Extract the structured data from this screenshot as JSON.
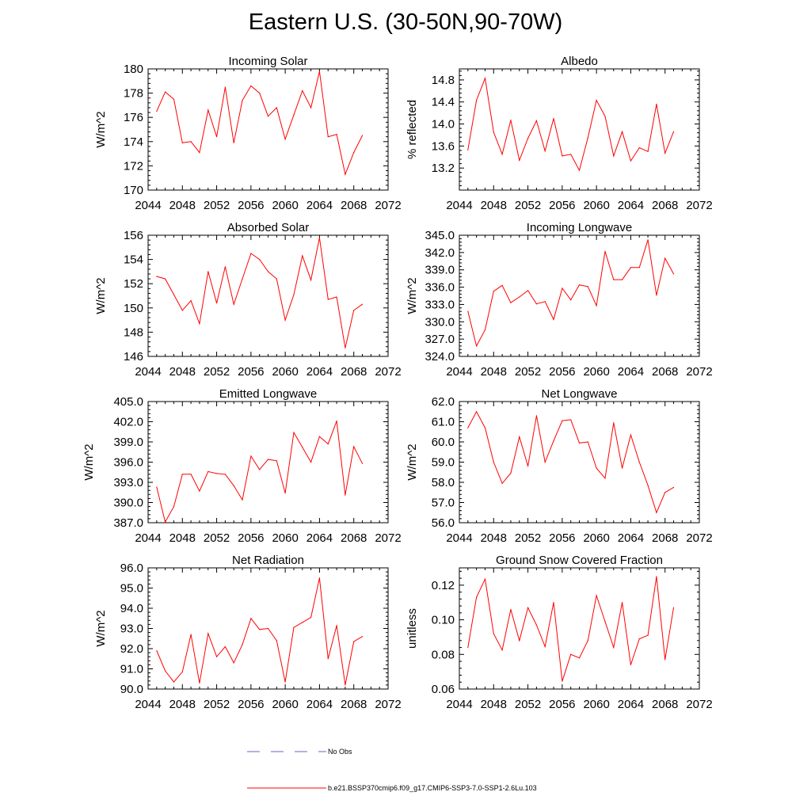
{
  "title": "Eastern U.S. (30-50N,90-70W)",
  "colors": {
    "model": "#ff0000",
    "obs": "#6666cc",
    "axis": "#000000"
  },
  "legend": {
    "obs_label": "No Obs",
    "model_label": "b.e21.BSSP370cmip6.f09_g17.CMIP6-SSP3-7.0-SSP1-2.6Lu.103"
  },
  "chart_data": [
    {
      "type": "line",
      "title": "Incoming Solar",
      "ylabel": "W/m^2",
      "xlim": [
        2044,
        2072
      ],
      "ylim": [
        170,
        180
      ],
      "xticks": [
        2044,
        2048,
        2052,
        2056,
        2060,
        2064,
        2068,
        2072
      ],
      "xtick_labels": [
        "2044",
        "2048",
        "2052",
        "2056",
        "2060",
        "2064",
        "2068",
        "2072"
      ],
      "yticks": [
        170,
        172,
        174,
        176,
        178,
        180
      ],
      "ytick_labels": [
        "170",
        "172",
        "174",
        "176",
        "178",
        "180"
      ],
      "x": [
        2045,
        2046,
        2047,
        2048,
        2049,
        2050,
        2051,
        2052,
        2053,
        2054,
        2055,
        2056,
        2057,
        2058,
        2059,
        2060,
        2061,
        2062,
        2063,
        2064,
        2065,
        2066,
        2067,
        2068,
        2069
      ],
      "series": [
        {
          "name": "b.e21.BSSP370cmip6.f09_g17.CMIP6-SSP3-7.0-SSP1-2.6Lu.103",
          "values": [
            176.5,
            178.1,
            177.5,
            173.9,
            174.0,
            173.1,
            176.6,
            174.4,
            178.5,
            173.9,
            177.4,
            178.6,
            178.0,
            176.1,
            176.8,
            174.2,
            176.2,
            178.2,
            176.8,
            179.8,
            174.4,
            174.6,
            171.3,
            173.1,
            174.5
          ]
        }
      ]
    },
    {
      "type": "line",
      "title": "Albedo",
      "ylabel": "% reflected",
      "xlim": [
        2044,
        2072
      ],
      "ylim": [
        12.8,
        15.0
      ],
      "xticks": [
        2044,
        2048,
        2052,
        2056,
        2060,
        2064,
        2068,
        2072
      ],
      "xtick_labels": [
        "2044",
        "2048",
        "2052",
        "2056",
        "2060",
        "2064",
        "2068",
        "2072"
      ],
      "yticks": [
        13.2,
        13.6,
        14.0,
        14.4,
        14.8
      ],
      "ytick_labels": [
        "13.2",
        "13.6",
        "14.0",
        "14.4",
        "14.8"
      ],
      "x": [
        2045,
        2046,
        2047,
        2048,
        2049,
        2050,
        2051,
        2052,
        2053,
        2054,
        2055,
        2056,
        2057,
        2058,
        2059,
        2060,
        2061,
        2062,
        2063,
        2064,
        2065,
        2066,
        2067,
        2068,
        2069
      ],
      "series": [
        {
          "name": "b.e21.BSSP370cmip6.f09_g17.CMIP6-SSP3-7.0-SSP1-2.6Lu.103",
          "values": [
            13.53,
            14.43,
            14.83,
            13.85,
            13.45,
            14.07,
            13.34,
            13.74,
            14.06,
            13.51,
            14.1,
            13.42,
            13.45,
            13.16,
            13.75,
            14.43,
            14.14,
            13.42,
            13.86,
            13.33,
            13.57,
            13.5,
            14.36,
            13.47,
            13.86
          ]
        }
      ]
    },
    {
      "type": "line",
      "title": "Absorbed Solar",
      "ylabel": "W/m^2",
      "xlim": [
        2044,
        2072
      ],
      "ylim": [
        146,
        156
      ],
      "xticks": [
        2044,
        2048,
        2052,
        2056,
        2060,
        2064,
        2068,
        2072
      ],
      "xtick_labels": [
        "2044",
        "2048",
        "2052",
        "2056",
        "2060",
        "2064",
        "2068",
        "2072"
      ],
      "yticks": [
        146,
        148,
        150,
        152,
        154,
        156
      ],
      "ytick_labels": [
        "146",
        "148",
        "150",
        "152",
        "154",
        "156"
      ],
      "x": [
        2045,
        2046,
        2047,
        2048,
        2049,
        2050,
        2051,
        2052,
        2053,
        2054,
        2055,
        2056,
        2057,
        2058,
        2059,
        2060,
        2061,
        2062,
        2063,
        2064,
        2065,
        2066,
        2067,
        2068,
        2069
      ],
      "series": [
        {
          "name": "b.e21.BSSP370cmip6.f09_g17.CMIP6-SSP3-7.0-SSP1-2.6Lu.103",
          "values": [
            152.6,
            152.4,
            151.1,
            149.8,
            150.6,
            148.7,
            153.0,
            150.4,
            153.4,
            150.3,
            152.4,
            154.5,
            154.0,
            153.0,
            152.4,
            149.0,
            151.1,
            154.3,
            152.3,
            155.8,
            150.7,
            150.9,
            146.7,
            149.8,
            150.3
          ]
        }
      ]
    },
    {
      "type": "line",
      "title": "Incoming Longwave",
      "ylabel": "W/m^2",
      "xlim": [
        2044,
        2072
      ],
      "ylim": [
        324.0,
        345.0
      ],
      "xticks": [
        2044,
        2048,
        2052,
        2056,
        2060,
        2064,
        2068,
        2072
      ],
      "xtick_labels": [
        "2044",
        "2048",
        "2052",
        "2056",
        "2060",
        "2064",
        "2068",
        "2072"
      ],
      "yticks": [
        324,
        327,
        330,
        333,
        336,
        339,
        342,
        345
      ],
      "ytick_labels": [
        "324.0",
        "327.0",
        "330.0",
        "333.0",
        "336.0",
        "339.0",
        "342.0",
        "345.0"
      ],
      "x": [
        2045,
        2046,
        2047,
        2048,
        2049,
        2050,
        2051,
        2052,
        2053,
        2054,
        2055,
        2056,
        2057,
        2058,
        2059,
        2060,
        2061,
        2062,
        2063,
        2064,
        2065,
        2066,
        2067,
        2068,
        2069
      ],
      "series": [
        {
          "name": "b.e21.BSSP370cmip6.f09_g17.CMIP6-SSP3-7.0-SSP1-2.6Lu.103",
          "values": [
            331.8,
            325.8,
            328.6,
            335.3,
            336.3,
            333.3,
            334.3,
            335.4,
            333.1,
            333.5,
            330.4,
            335.8,
            333.8,
            336.4,
            336.1,
            332.8,
            342.2,
            337.3,
            337.3,
            339.4,
            339.4,
            344.2,
            334.6,
            341.0,
            338.3
          ]
        }
      ]
    },
    {
      "type": "line",
      "title": "Emitted Longwave",
      "ylabel": "W/m^2",
      "xlim": [
        2044,
        2072
      ],
      "ylim": [
        387.0,
        405.0
      ],
      "xticks": [
        2044,
        2048,
        2052,
        2056,
        2060,
        2064,
        2068,
        2072
      ],
      "xtick_labels": [
        "2044",
        "2048",
        "2052",
        "2056",
        "2060",
        "2064",
        "2068",
        "2072"
      ],
      "yticks": [
        387,
        390,
        393,
        396,
        399,
        402,
        405
      ],
      "ytick_labels": [
        "387.0",
        "390.0",
        "393.0",
        "396.0",
        "399.0",
        "402.0",
        "405.0"
      ],
      "x": [
        2045,
        2046,
        2047,
        2048,
        2049,
        2050,
        2051,
        2052,
        2053,
        2054,
        2055,
        2056,
        2057,
        2058,
        2059,
        2060,
        2061,
        2062,
        2063,
        2064,
        2065,
        2066,
        2067,
        2068,
        2069
      ],
      "series": [
        {
          "name": "b.e21.BSSP370cmip6.f09_g17.CMIP6-SSP3-7.0-SSP1-2.6Lu.103",
          "values": [
            392.3,
            387.1,
            389.4,
            394.2,
            394.2,
            391.7,
            394.6,
            394.3,
            394.2,
            392.5,
            390.4,
            396.9,
            394.9,
            396.4,
            396.2,
            391.4,
            400.4,
            398.2,
            396.0,
            399.8,
            398.7,
            402.1,
            391.1,
            398.3,
            395.8
          ]
        }
      ]
    },
    {
      "type": "line",
      "title": "Net Longwave",
      "ylabel": "W/m^2",
      "xlim": [
        2044,
        2072
      ],
      "ylim": [
        56.0,
        62.0
      ],
      "xticks": [
        2044,
        2048,
        2052,
        2056,
        2060,
        2064,
        2068,
        2072
      ],
      "xtick_labels": [
        "2044",
        "2048",
        "2052",
        "2056",
        "2060",
        "2064",
        "2068",
        "2072"
      ],
      "yticks": [
        56,
        57,
        58,
        59,
        60,
        61,
        62
      ],
      "ytick_labels": [
        "56.0",
        "57.0",
        "58.0",
        "59.0",
        "60.0",
        "61.0",
        "62.0"
      ],
      "x": [
        2045,
        2046,
        2047,
        2048,
        2049,
        2050,
        2051,
        2052,
        2053,
        2054,
        2055,
        2056,
        2057,
        2058,
        2059,
        2060,
        2061,
        2062,
        2063,
        2064,
        2065,
        2066,
        2067,
        2068,
        2069
      ],
      "series": [
        {
          "name": "b.e21.BSSP370cmip6.f09_g17.CMIP6-SSP3-7.0-SSP1-2.6Lu.103",
          "values": [
            60.7,
            61.5,
            60.7,
            59.0,
            57.95,
            58.45,
            60.25,
            58.8,
            61.3,
            59.0,
            60.05,
            61.05,
            61.1,
            59.95,
            60.0,
            58.7,
            58.2,
            60.95,
            58.7,
            60.35,
            59.0,
            57.85,
            56.5,
            57.5,
            57.75
          ]
        }
      ]
    },
    {
      "type": "line",
      "title": "Net Radiation",
      "ylabel": "W/m^2",
      "xlim": [
        2044,
        2072
      ],
      "ylim": [
        90.0,
        96.0
      ],
      "xticks": [
        2044,
        2048,
        2052,
        2056,
        2060,
        2064,
        2068,
        2072
      ],
      "xtick_labels": [
        "2044",
        "2048",
        "2052",
        "2056",
        "2060",
        "2064",
        "2068",
        "2072"
      ],
      "yticks": [
        90,
        91,
        92,
        93,
        94,
        95,
        96
      ],
      "ytick_labels": [
        "90.0",
        "91.0",
        "92.0",
        "93.0",
        "94.0",
        "95.0",
        "96.0"
      ],
      "x": [
        2045,
        2046,
        2047,
        2048,
        2049,
        2050,
        2051,
        2052,
        2053,
        2054,
        2055,
        2056,
        2057,
        2058,
        2059,
        2060,
        2061,
        2062,
        2063,
        2064,
        2065,
        2066,
        2067,
        2068,
        2069
      ],
      "series": [
        {
          "name": "b.e21.BSSP370cmip6.f09_g17.CMIP6-SSP3-7.0-SSP1-2.6Lu.103",
          "values": [
            91.9,
            90.9,
            90.35,
            90.85,
            92.7,
            90.3,
            92.75,
            91.6,
            92.1,
            91.3,
            92.2,
            93.5,
            92.95,
            93.0,
            92.4,
            90.35,
            93.05,
            93.3,
            93.55,
            95.5,
            91.5,
            93.15,
            90.2,
            92.35,
            92.6
          ]
        }
      ]
    },
    {
      "type": "line",
      "title": "Ground Snow Covered Fraction",
      "ylabel": "unitless",
      "xlim": [
        2044,
        2072
      ],
      "ylim": [
        0.06,
        0.13
      ],
      "xticks": [
        2044,
        2048,
        2052,
        2056,
        2060,
        2064,
        2068,
        2072
      ],
      "xtick_labels": [
        "2044",
        "2048",
        "2052",
        "2056",
        "2060",
        "2064",
        "2068",
        "2072"
      ],
      "yticks": [
        0.06,
        0.08,
        0.1,
        0.12
      ],
      "ytick_labels": [
        "0.06",
        "0.08",
        "0.10",
        "0.12"
      ],
      "x": [
        2045,
        2046,
        2047,
        2048,
        2049,
        2050,
        2051,
        2052,
        2053,
        2054,
        2055,
        2056,
        2057,
        2058,
        2059,
        2060,
        2061,
        2062,
        2063,
        2064,
        2065,
        2066,
        2067,
        2068,
        2069
      ],
      "series": [
        {
          "name": "b.e21.BSSP370cmip6.f09_g17.CMIP6-SSP3-7.0-SSP1-2.6Lu.103",
          "values": [
            0.084,
            0.113,
            0.1235,
            0.092,
            0.0825,
            0.106,
            0.088,
            0.107,
            0.097,
            0.0845,
            0.11,
            0.0645,
            0.08,
            0.078,
            0.088,
            0.114,
            0.099,
            0.084,
            0.11,
            0.074,
            0.089,
            0.091,
            0.125,
            0.077,
            0.107
          ]
        }
      ]
    }
  ]
}
